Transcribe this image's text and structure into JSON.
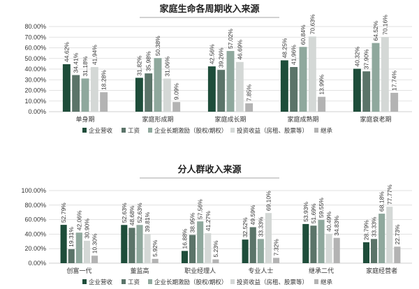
{
  "chart_data": [
    {
      "type": "bar",
      "title": "家庭生命各周期收入来源",
      "categories": [
        "单身期",
        "家庭形成期",
        "家庭成长期",
        "家庭成熟期",
        "家庭衰老期"
      ],
      "series": [
        {
          "name": "企业营收",
          "color": "#1e4d3a",
          "values": [
            44.62,
            31.82,
            42.56,
            48.25,
            40.32
          ],
          "labels": [
            "44.62%",
            "31.82%",
            "42.56%",
            "48.25%",
            "40.32%"
          ]
        },
        {
          "name": "工资",
          "color": "#5b7469",
          "values": [
            34.41,
            35.98,
            39.26,
            41.96,
            37.9
          ],
          "labels": [
            "34.41%",
            "35.98%",
            "39.26%",
            "41.96%",
            "37.90%"
          ]
        },
        {
          "name": "企业长期激励（股权/期权）",
          "color": "#8fa89d",
          "values": [
            31.18,
            50.38,
            57.02,
            60.84,
            64.52
          ],
          "labels": [
            "31.18%",
            "50.38%",
            "57.02%",
            "60.84%",
            "64.52%"
          ]
        },
        {
          "name": "投资收益（房租、股票等）",
          "color": "#d4d8d6",
          "values": [
            41.94,
            31.06,
            46.69,
            70.63,
            70.16
          ],
          "labels": [
            "41.94%",
            "31.06%",
            "46.69%",
            "70.63%",
            "70.16%"
          ]
        },
        {
          "name": "继承",
          "color": "#b3b3b3",
          "values": [
            18.28,
            9.09,
            7.85,
            13.99,
            17.74
          ],
          "labels": [
            "18.28%",
            "9.09%",
            "7.85%",
            "13.99%",
            "17.74%"
          ]
        }
      ],
      "ylim": [
        0,
        80
      ],
      "yticks": [
        "0.00%",
        "10.00%",
        "20.00%",
        "30.00%",
        "40.00%",
        "50.00%",
        "60.00%",
        "70.00%",
        "80.00%"
      ],
      "grid": true,
      "legend": "bottom"
    },
    {
      "type": "bar",
      "title": "分人群收入来源",
      "categories": [
        "创富一代",
        "董监高",
        "职业经理人",
        "专业人士",
        "继承二代",
        "家庭经营者"
      ],
      "series": [
        {
          "name": "企业营收",
          "color": "#1e4d3a",
          "values": [
            52.79,
            52.63,
            16.88,
            32.52,
            53.93,
            28.79
          ],
          "labels": [
            "52.79%",
            "52.63%",
            "16.88%",
            "32.52%",
            "53.93%",
            "28.79%"
          ]
        },
        {
          "name": "工资",
          "color": "#5b7469",
          "values": [
            19.31,
            48.68,
            38.95,
            49.59,
            51.69,
            33.33
          ],
          "labels": [
            "19.31%",
            "48.68%",
            "38.95%",
            "49.59%",
            "51.69%",
            "33.33%"
          ]
        },
        {
          "name": "企业长期激励（股权/期权）",
          "color": "#8fa89d",
          "values": [
            42.06,
            52.63,
            57.56,
            33.33,
            59.55,
            68.18
          ],
          "labels": [
            "42.06%",
            "52.63%",
            "57.56%",
            "33.33%",
            "59.55%",
            "68.18%"
          ]
        },
        {
          "name": "投资收益（房租、股票等）",
          "color": "#d4d8d6",
          "values": [
            30.9,
            39.81,
            41.27,
            69.1,
            40.49,
            77.77
          ],
          "labels": [
            "30.90%",
            "39.81%",
            "41.27%",
            "69.10%",
            "40.49%",
            "77.77%"
          ]
        },
        {
          "name": "继承",
          "color": "#b3b3b3",
          "values": [
            10.3,
            5.92,
            5.23,
            7.32,
            34.83,
            22.73
          ],
          "labels": [
            "10.30%",
            "5.92%",
            "5.23%",
            "7.32%",
            "34.83%",
            "22.73%"
          ]
        }
      ],
      "ylim": [
        0,
        100
      ],
      "yticks": [
        "0.00%",
        "20.00%",
        "40.00%",
        "60.00%",
        "80.00%",
        "100.00%"
      ],
      "grid": true,
      "legend": "bottom"
    }
  ]
}
